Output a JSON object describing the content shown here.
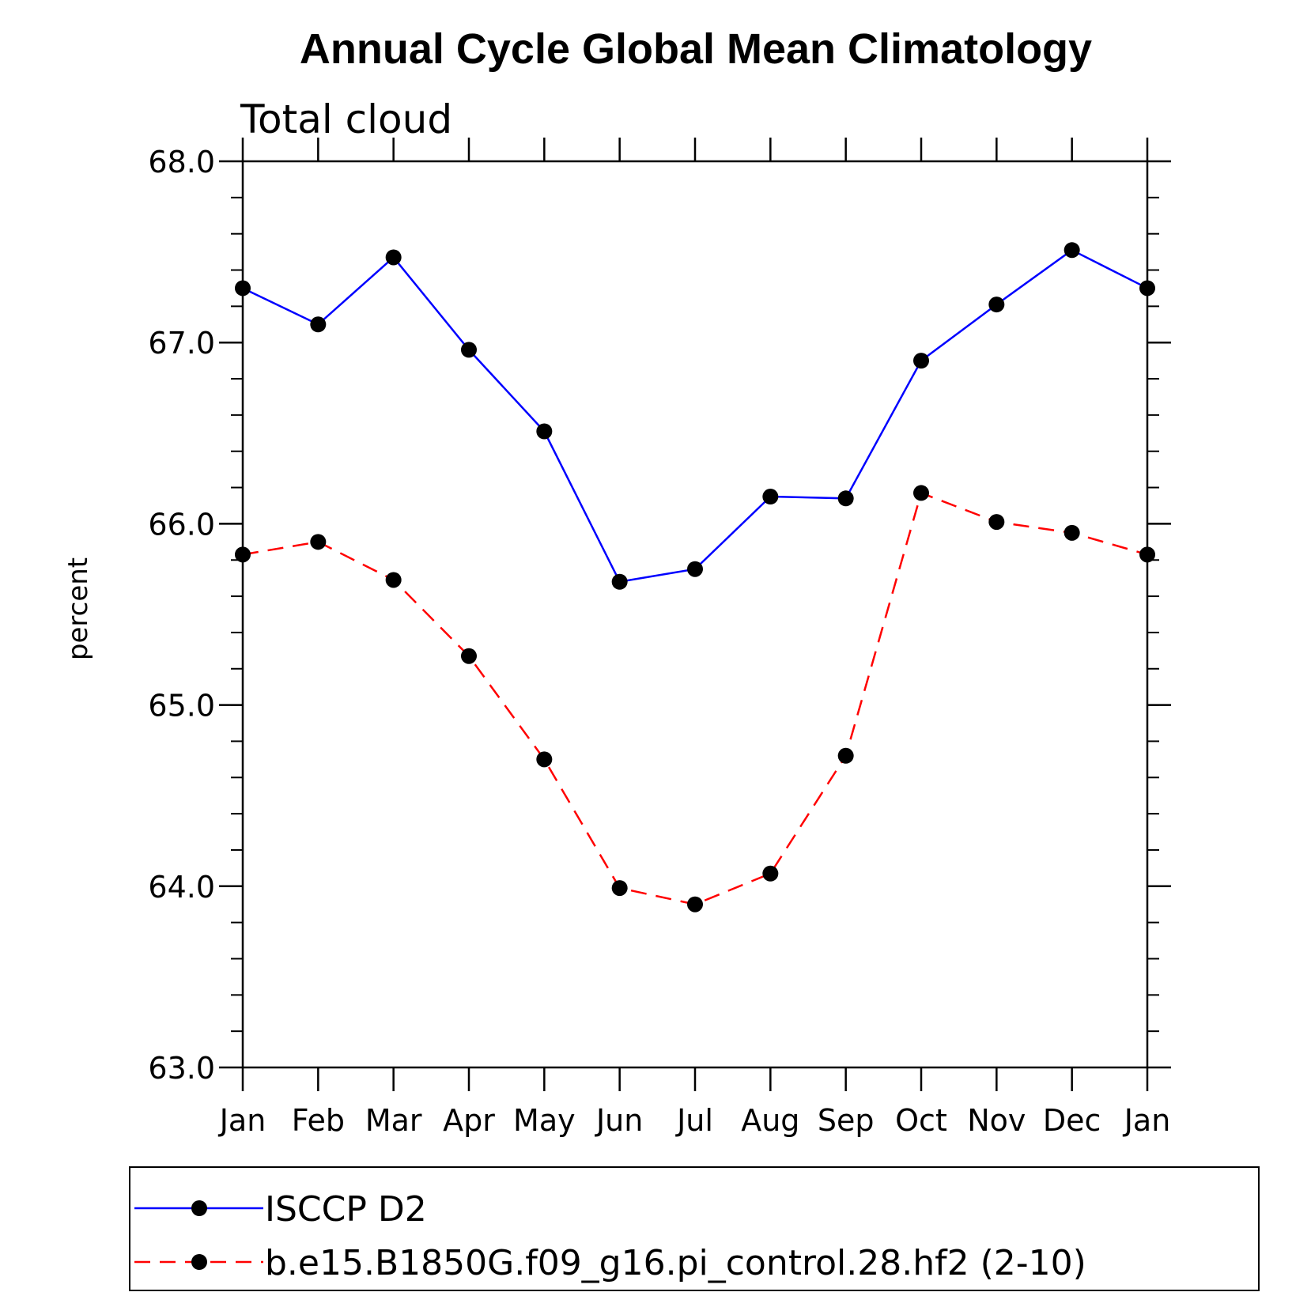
{
  "chart_data": {
    "type": "line",
    "title": "Annual Cycle Global Mean Climatology",
    "subtitle": "Total cloud",
    "xlabel": "",
    "ylabel": "percent",
    "categories": [
      "Jan",
      "Feb",
      "Mar",
      "Apr",
      "May",
      "Jun",
      "Jul",
      "Aug",
      "Sep",
      "Oct",
      "Nov",
      "Dec",
      "Jan"
    ],
    "ylim": [
      63.0,
      68.0
    ],
    "ytick_values": [
      63.0,
      64.0,
      65.0,
      66.0,
      67.0,
      68.0
    ],
    "ytick_labels": [
      "63.0",
      "64.0",
      "65.0",
      "66.0",
      "67.0",
      "68.0"
    ],
    "y_minor_step": 0.2,
    "legend_position": "bottom",
    "series": [
      {
        "name": "ISCCP D2",
        "color": "#0000ff",
        "line_style": "solid",
        "marker": "filled-circle",
        "values": [
          67.3,
          67.1,
          67.47,
          66.96,
          66.51,
          65.68,
          65.75,
          66.15,
          66.14,
          66.9,
          67.21,
          67.51,
          67.3
        ]
      },
      {
        "name": "b.e15.B1850G.f09_g16.pi_control.28.hf2 (2-10)",
        "color": "#ff0000",
        "line_style": "dashed",
        "marker": "filled-circle",
        "values": [
          65.83,
          65.9,
          65.69,
          65.27,
          64.7,
          63.99,
          63.9,
          64.07,
          64.72,
          66.17,
          66.01,
          65.95,
          65.83
        ]
      }
    ]
  }
}
